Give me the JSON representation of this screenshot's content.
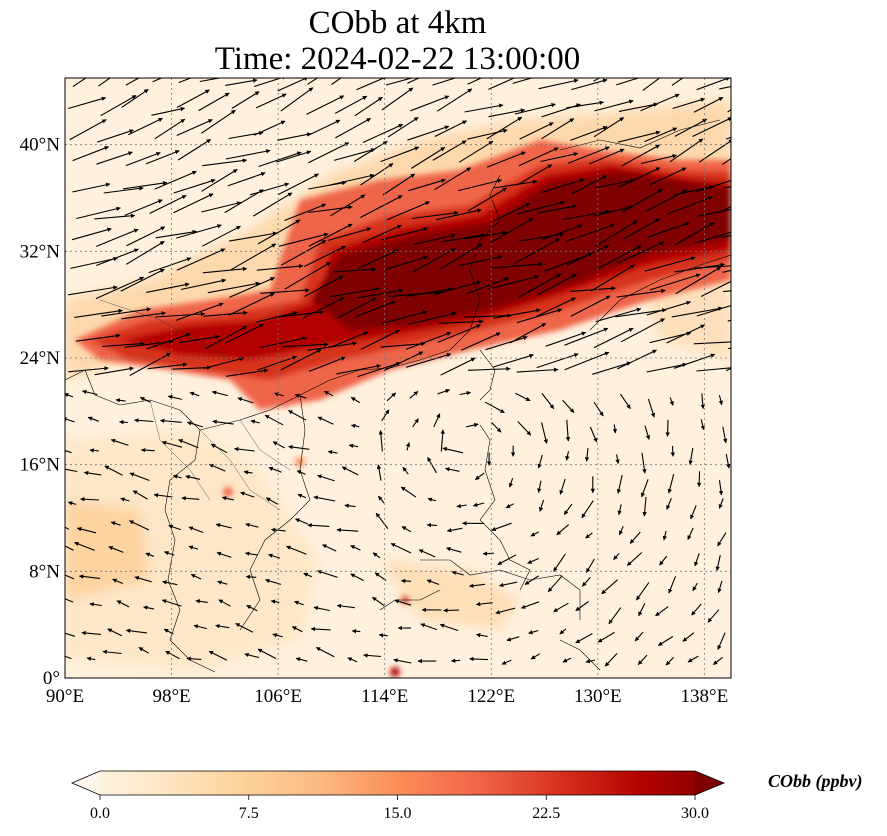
{
  "title": {
    "line1": "CObb at 4km",
    "line2": "Time: 2024-02-22 13:00:00"
  },
  "map": {
    "lon_range": [
      90,
      140
    ],
    "lat_range": [
      0,
      45
    ],
    "lon_ticks": [
      {
        "value": 90,
        "label": "90°E"
      },
      {
        "value": 98,
        "label": "98°E"
      },
      {
        "value": 106,
        "label": "106°E"
      },
      {
        "value": 114,
        "label": "114°E"
      },
      {
        "value": 122,
        "label": "122°E"
      },
      {
        "value": 130,
        "label": "130°E"
      },
      {
        "value": 138,
        "label": "138°E"
      }
    ],
    "lat_ticks": [
      {
        "value": 0,
        "label": "0°"
      },
      {
        "value": 8,
        "label": "8°N"
      },
      {
        "value": 16,
        "label": "16°N"
      },
      {
        "value": 24,
        "label": "24°N"
      },
      {
        "value": 32,
        "label": "32°N"
      },
      {
        "value": 40,
        "label": "40°N"
      }
    ],
    "gridlines": true,
    "field": "CObb concentration",
    "vectors": "wind arrows"
  },
  "colorbar": {
    "min": 0.0,
    "max": 30.0,
    "ticks": [
      "0.0",
      "7.5",
      "15.0",
      "22.5",
      "30.0"
    ],
    "label": "CObb (ppbv)",
    "extend": "both",
    "colormap": [
      "#fff7ec",
      "#fee8c8",
      "#fdd49e",
      "#fdbb84",
      "#fc8d59",
      "#ef6548",
      "#d7301f",
      "#b30000",
      "#7f0000"
    ]
  }
}
